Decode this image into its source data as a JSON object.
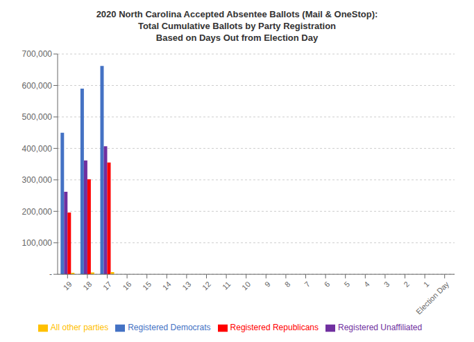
{
  "chart_data": {
    "type": "bar",
    "title": "2020 North Carolina Accepted Absentee Ballots (Mail & OneStop):\nTotal Cumulative Ballots by Party Registration\nBased on Days Out from Election Day",
    "categories": [
      "19",
      "18",
      "17",
      "16",
      "15",
      "14",
      "13",
      "12",
      "11",
      "10",
      "9",
      "8",
      "7",
      "6",
      "5",
      "4",
      "3",
      "2",
      "1",
      "Election Day"
    ],
    "series": [
      {
        "name": "Registered Democrats",
        "color": "#4472C4",
        "values": [
          450000,
          590000,
          662000,
          0,
          0,
          0,
          0,
          0,
          0,
          0,
          0,
          0,
          0,
          0,
          0,
          0,
          0,
          0,
          0,
          0
        ]
      },
      {
        "name": "Registered Unaffiliated",
        "color": "#7030A0",
        "values": [
          262000,
          362000,
          407000,
          0,
          0,
          0,
          0,
          0,
          0,
          0,
          0,
          0,
          0,
          0,
          0,
          0,
          0,
          0,
          0,
          0
        ]
      },
      {
        "name": "Registered Republicans",
        "color": "#FF0000",
        "values": [
          196000,
          302000,
          355000,
          0,
          0,
          0,
          0,
          0,
          0,
          0,
          0,
          0,
          0,
          0,
          0,
          0,
          0,
          0,
          0,
          0
        ]
      },
      {
        "name": "All other parties",
        "color": "#FFC000",
        "values": [
          5000,
          6000,
          7000,
          0,
          0,
          0,
          0,
          0,
          0,
          0,
          0,
          0,
          0,
          0,
          0,
          0,
          0,
          0,
          0,
          0
        ]
      }
    ],
    "ylim": [
      0,
      700000
    ],
    "yticks": [
      {
        "value": 0,
        "label": "-"
      },
      {
        "value": 100000,
        "label": "100,000"
      },
      {
        "value": 200000,
        "label": "200,000"
      },
      {
        "value": 300000,
        "label": "300,000"
      },
      {
        "value": 400000,
        "label": "400,000"
      },
      {
        "value": 500000,
        "label": "500,000"
      },
      {
        "value": 600000,
        "label": "600,000"
      },
      {
        "value": 700000,
        "label": "700,000"
      }
    ],
    "grid": true,
    "legend": "bottom"
  }
}
